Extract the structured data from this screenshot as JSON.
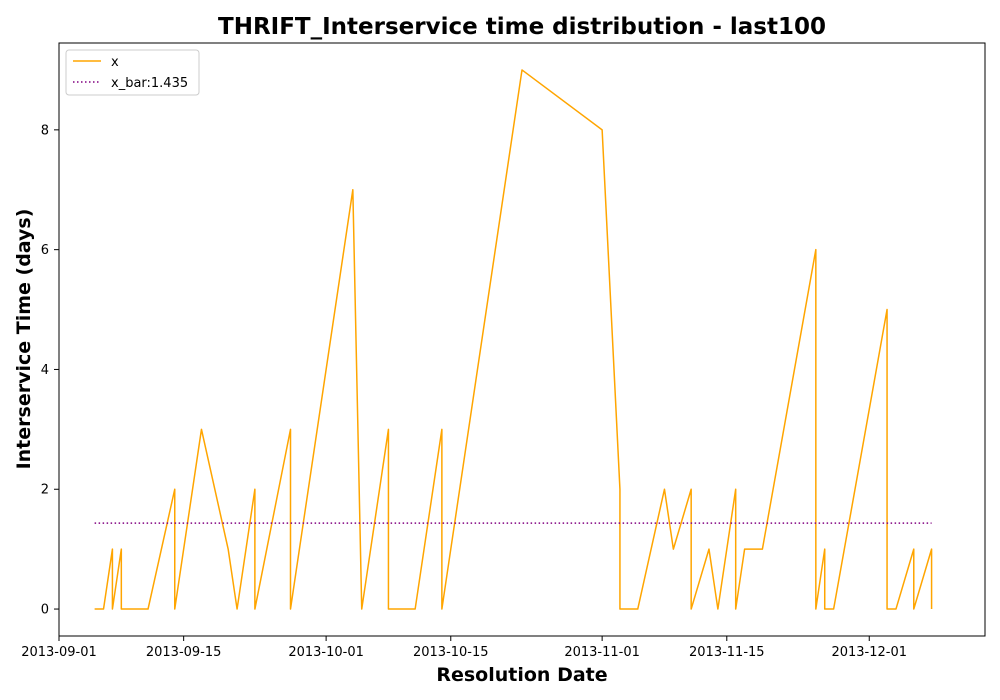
{
  "chart_data": {
    "type": "line",
    "title": "THRIFT_Interservice time distribution - last100",
    "xlabel": "Resolution Date",
    "ylabel": "Interservice Time (days)",
    "xlim": [
      "2013-09-01",
      "2013-12-14"
    ],
    "ylim": [
      -0.45,
      9.45
    ],
    "x_ticks": [
      "2013-09-01",
      "2013-09-15",
      "2013-10-01",
      "2013-10-15",
      "2013-11-01",
      "2013-11-15",
      "2013-12-01"
    ],
    "y_ticks": [
      0,
      2,
      4,
      6,
      8
    ],
    "grid": false,
    "legend_position": "top-left",
    "series": [
      {
        "name": "x",
        "color": "#FFA500",
        "style": "solid",
        "points": [
          [
            "2013-09-05",
            0
          ],
          [
            "2013-09-06",
            0
          ],
          [
            "2013-09-07",
            1
          ],
          [
            "2013-09-07",
            0
          ],
          [
            "2013-09-08",
            1
          ],
          [
            "2013-09-08",
            0
          ],
          [
            "2013-09-09",
            0
          ],
          [
            "2013-09-11",
            0
          ],
          [
            "2013-09-14",
            2
          ],
          [
            "2013-09-14",
            0
          ],
          [
            "2013-09-17",
            3
          ],
          [
            "2013-09-20",
            1
          ],
          [
            "2013-09-21",
            0
          ],
          [
            "2013-09-23",
            2
          ],
          [
            "2013-09-23",
            0
          ],
          [
            "2013-09-27",
            3
          ],
          [
            "2013-09-27",
            0
          ],
          [
            "2013-10-04",
            7
          ],
          [
            "2013-10-05",
            0
          ],
          [
            "2013-10-08",
            3
          ],
          [
            "2013-10-08",
            0
          ],
          [
            "2013-10-11",
            0
          ],
          [
            "2013-10-14",
            3
          ],
          [
            "2013-10-14",
            0
          ],
          [
            "2013-10-23",
            9
          ],
          [
            "2013-11-01",
            8
          ],
          [
            "2013-11-03",
            2
          ],
          [
            "2013-11-03",
            0
          ],
          [
            "2013-11-05",
            0
          ],
          [
            "2013-11-08",
            2
          ],
          [
            "2013-11-09",
            1
          ],
          [
            "2013-11-11",
            2
          ],
          [
            "2013-11-11",
            0
          ],
          [
            "2013-11-13",
            1
          ],
          [
            "2013-11-14",
            0
          ],
          [
            "2013-11-16",
            2
          ],
          [
            "2013-11-16",
            0
          ],
          [
            "2013-11-17",
            1
          ],
          [
            "2013-11-19",
            1
          ],
          [
            "2013-11-25",
            6
          ],
          [
            "2013-11-25",
            0
          ],
          [
            "2013-11-26",
            1
          ],
          [
            "2013-11-26",
            0
          ],
          [
            "2013-11-27",
            0
          ],
          [
            "2013-12-03",
            5
          ],
          [
            "2013-12-03",
            0
          ],
          [
            "2013-12-04",
            0
          ],
          [
            "2013-12-06",
            1
          ],
          [
            "2013-12-06",
            0
          ],
          [
            "2013-12-08",
            1
          ],
          [
            "2013-12-08",
            0
          ]
        ]
      },
      {
        "name": "x_bar:1.435",
        "color": "#800080",
        "style": "dotted",
        "points": [
          [
            "2013-09-05",
            1.435
          ],
          [
            "2013-12-08",
            1.435
          ]
        ]
      }
    ]
  }
}
